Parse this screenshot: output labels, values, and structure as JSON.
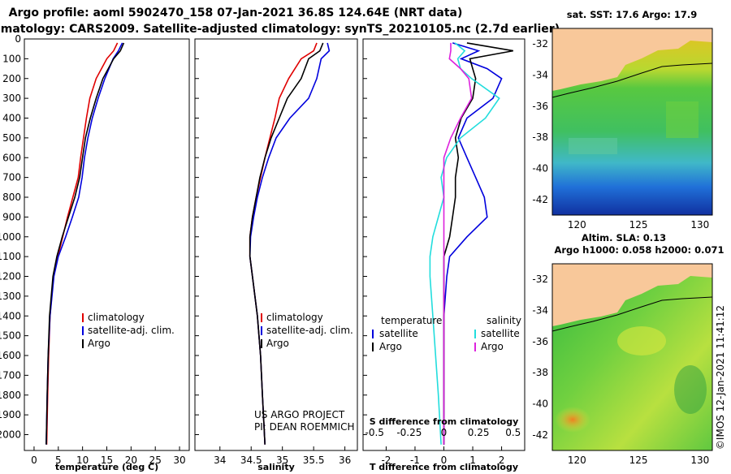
{
  "title_line1": "Argo profile: aoml 5902470_158 07-Jan-2021 36.8S 124.64E (NRT data)",
  "title_line2": "Climatology: CARS2009. Satellite-adjusted climatology: synTS_20210105.nc (2.7d earlier)",
  "copyright": "©IMOS 12-Jan-2021 11:41:12",
  "credit_line1": "US ARGO PROJECT",
  "credit_line2": "PI: DEAN ROEMMICH",
  "colors": {
    "climatology": "#e00000",
    "satellite": "#0000dd",
    "argo": "#000000",
    "sat_salinity": "#22dddd",
    "argo_salinity": "#dd22dd",
    "land": "#f8c89a"
  },
  "chart_data": [
    {
      "type": "line",
      "id": "temperature",
      "xlabel": "temperature (deg C)",
      "ylabel": "",
      "xlim": [
        -2,
        32
      ],
      "ylim": [
        2080,
        0
      ],
      "xticks": [
        "0",
        "5",
        "10",
        "15",
        "20",
        "25",
        "30"
      ],
      "xtick_values": [
        0,
        5,
        10,
        15,
        20,
        25,
        30
      ],
      "yticks": [
        "0",
        "100",
        "200",
        "300",
        "400",
        "500",
        "600",
        "700",
        "800",
        "900",
        "1000",
        "1100",
        "1200",
        "1300",
        "1400",
        "1500",
        "1600",
        "1700",
        "1800",
        "1900",
        "2000"
      ],
      "ytick_values": [
        0,
        100,
        200,
        300,
        400,
        500,
        600,
        700,
        800,
        900,
        1000,
        1100,
        1200,
        1300,
        1400,
        1500,
        1600,
        1700,
        1800,
        1900,
        2000
      ],
      "legend": [
        "climatology",
        "satellite-adj. clim.",
        "Argo"
      ],
      "series": [
        {
          "name": "climatology",
          "color": "#e00000",
          "depth": [
            20,
            60,
            100,
            200,
            300,
            400,
            500,
            600,
            700,
            800,
            900,
            1000,
            1100,
            1200,
            1400,
            1600,
            1800,
            2050
          ],
          "values": [
            17.2,
            16.4,
            15.0,
            12.8,
            11.5,
            10.8,
            10.2,
            9.6,
            9.1,
            8.0,
            6.9,
            5.9,
            4.9,
            4.0,
            3.3,
            3.0,
            2.8,
            2.6
          ]
        },
        {
          "name": "satellite-adj. clim.",
          "color": "#0000dd",
          "depth": [
            20,
            60,
            100,
            200,
            300,
            400,
            500,
            600,
            700,
            800,
            900,
            1000,
            1100,
            1200,
            1400,
            1600,
            1800,
            2050
          ],
          "values": [
            18.2,
            17.4,
            16.3,
            14.6,
            13.2,
            12.0,
            11.1,
            10.4,
            9.9,
            9.2,
            7.9,
            6.5,
            5.0,
            4.1,
            3.3,
            2.9,
            2.7,
            2.5
          ]
        },
        {
          "name": "Argo",
          "color": "#000000",
          "depth": [
            20,
            60,
            100,
            200,
            300,
            400,
            500,
            600,
            700,
            800,
            900,
            1000,
            1100,
            1200,
            1400,
            1600,
            1800,
            2050
          ],
          "values": [
            18.5,
            17.8,
            16.4,
            14.2,
            12.8,
            11.6,
            10.6,
            10.0,
            9.4,
            8.4,
            7.1,
            5.8,
            4.7,
            3.9,
            3.2,
            2.9,
            2.7,
            2.5
          ]
        }
      ]
    },
    {
      "type": "line",
      "id": "salinity",
      "xlabel": "salinity",
      "xlim": [
        33.6,
        36.2
      ],
      "ylim": [
        2080,
        0
      ],
      "xticks": [
        "34",
        "34.5",
        "35",
        "35.5",
        "36"
      ],
      "xtick_values": [
        34,
        34.5,
        35,
        35.5,
        36
      ],
      "legend": [
        "climatology",
        "satellite-adj. clim.",
        "Argo"
      ],
      "series": [
        {
          "name": "climatology",
          "color": "#e00000",
          "depth": [
            20,
            60,
            100,
            200,
            300,
            400,
            500,
            600,
            700,
            800,
            900,
            1000,
            1100,
            1200,
            1400,
            1600,
            1800,
            2050
          ],
          "values": [
            35.55,
            35.5,
            35.3,
            35.1,
            34.95,
            34.88,
            34.8,
            34.72,
            34.65,
            34.58,
            34.52,
            34.48,
            34.48,
            34.52,
            34.6,
            34.65,
            34.68,
            34.72
          ]
        },
        {
          "name": "satellite-adj. clim.",
          "color": "#0000dd",
          "depth": [
            20,
            60,
            100,
            200,
            300,
            400,
            500,
            600,
            700,
            800,
            900,
            1000,
            1100,
            1200,
            1400,
            1600,
            1800,
            2050
          ],
          "values": [
            35.72,
            35.75,
            35.62,
            35.55,
            35.42,
            35.12,
            34.9,
            34.78,
            34.68,
            34.6,
            34.54,
            34.49,
            34.48,
            34.52,
            34.6,
            34.65,
            34.68,
            34.72
          ]
        },
        {
          "name": "Argo",
          "color": "#000000",
          "depth": [
            20,
            60,
            100,
            200,
            300,
            400,
            500,
            600,
            700,
            800,
            900,
            1000,
            1100,
            1200,
            1400,
            1600,
            1800,
            2050
          ],
          "values": [
            35.65,
            35.6,
            35.42,
            35.3,
            35.08,
            34.95,
            34.82,
            34.72,
            34.64,
            34.58,
            34.52,
            34.48,
            34.48,
            34.52,
            34.6,
            34.65,
            34.68,
            34.72
          ]
        }
      ]
    },
    {
      "type": "line",
      "id": "difference",
      "xlabel": "T difference from climatology",
      "xlabel_top": "S difference from climatology",
      "xlim": [
        -2.8,
        2.8
      ],
      "ylim": [
        2080,
        0
      ],
      "xticks": [
        "-2",
        "-1",
        "0",
        "1",
        "2"
      ],
      "xtick_values": [
        -2,
        -1,
        0,
        1,
        2
      ],
      "xticks_s": [
        "-0.5",
        "-0.25",
        "0",
        "0.25",
        "0.5"
      ],
      "xtick_s_values": [
        -0.5,
        -0.25,
        0,
        0.25,
        0.5
      ],
      "legend_left_title": "temperature",
      "legend_right_title": "salinity",
      "legend": [
        "satellite",
        "Argo",
        "satellite",
        "Argo"
      ],
      "series": [
        {
          "name": "T satellite",
          "color": "#0000dd",
          "depth": [
            20,
            60,
            100,
            150,
            200,
            300,
            400,
            500,
            600,
            700,
            800,
            900,
            1000,
            1100,
            1200,
            1400,
            1600,
            1800,
            2050
          ],
          "values": [
            0.3,
            1.2,
            0.6,
            1.5,
            2.0,
            1.7,
            0.8,
            0.5,
            0.8,
            1.1,
            1.4,
            1.5,
            0.8,
            0.2,
            0.1,
            0,
            0,
            0,
            0
          ]
        },
        {
          "name": "T Argo",
          "color": "#000000",
          "depth": [
            20,
            60,
            100,
            150,
            200,
            300,
            400,
            500,
            600,
            700,
            800,
            900,
            1000,
            1100,
            1200,
            1400,
            1600,
            1800,
            2050
          ],
          "values": [
            0.8,
            2.4,
            0.9,
            1.0,
            1.1,
            1.0,
            0.6,
            0.4,
            0.5,
            0.4,
            0.4,
            0.3,
            0.2,
            0,
            0,
            0,
            0,
            0,
            0
          ]
        },
        {
          "name": "S satellite",
          "color": "#22dddd",
          "depth": [
            20,
            60,
            100,
            150,
            200,
            300,
            400,
            500,
            600,
            700,
            800,
            900,
            1000,
            1100,
            1200,
            1400,
            1600,
            1800,
            2050
          ],
          "values": [
            0.08,
            0.15,
            0.1,
            0.12,
            0.2,
            0.4,
            0.3,
            0.12,
            0.02,
            -0.02,
            0.0,
            -0.04,
            -0.08,
            -0.1,
            -0.1,
            -0.08,
            -0.06,
            -0.04,
            -0.02
          ]
        },
        {
          "name": "S Argo",
          "color": "#dd22dd",
          "depth": [
            20,
            60,
            100,
            150,
            200,
            300,
            400,
            500,
            600,
            700,
            800,
            900,
            1000,
            1100,
            1200,
            1400,
            1600,
            1800,
            2050
          ],
          "values": [
            0.05,
            0.05,
            0.04,
            0.12,
            0.18,
            0.2,
            0.12,
            0.05,
            0.0,
            0.0,
            0.0,
            0.0,
            0.0,
            0.0,
            0.0,
            0.0,
            0.0,
            0.0,
            0.0
          ]
        }
      ]
    },
    {
      "type": "heatmap",
      "id": "sst_map",
      "title": "sat. SST: 17.6 Argo: 17.9",
      "xlim": [
        118,
        131
      ],
      "ylim": [
        -43,
        -31
      ],
      "xticks": [
        "120",
        "125",
        "130"
      ],
      "xtick_values": [
        120,
        125,
        130
      ],
      "yticks": [
        "-32",
        "-34",
        "-36",
        "-38",
        "-40",
        "-42"
      ],
      "ytick_values": [
        -32,
        -34,
        -36,
        -38,
        -40,
        -42
      ],
      "marker": {
        "lon": 124.64,
        "lat": -36.8
      }
    },
    {
      "type": "heatmap",
      "id": "sla_map",
      "title": "Altim. SLA: 0.13",
      "subtitle": "Argo h1000: 0.058 h2000: 0.071",
      "xlim": [
        118,
        131
      ],
      "ylim": [
        -43,
        -31
      ],
      "xticks": [
        "120",
        "125",
        "130"
      ],
      "xtick_values": [
        120,
        125,
        130
      ],
      "yticks": [
        "-32",
        "-34",
        "-36",
        "-38",
        "-40",
        "-42"
      ],
      "ytick_values": [
        -32,
        -34,
        -36,
        -38,
        -40,
        -42
      ],
      "marker": {
        "lon": 124.64,
        "lat": -36.8
      }
    }
  ]
}
